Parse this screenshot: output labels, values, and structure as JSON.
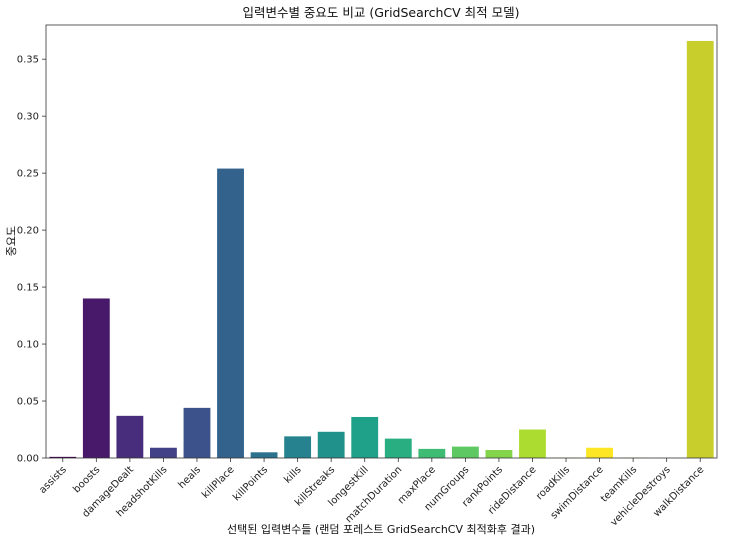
{
  "chart_data": {
    "type": "bar",
    "title": "입력변수별 중요도 비교 (GridSearchCV 최적 모델)",
    "xlabel": "선택된 입력변수들 (랜덤 포레스트 GridSearchCV 최적화후 결과)",
    "ylabel": "중요도",
    "ylim": [
      0,
      0.38
    ],
    "yticks": [
      "0.00",
      "0.05",
      "0.10",
      "0.15",
      "0.20",
      "0.25",
      "0.30",
      "0.35"
    ],
    "categories": [
      "assists",
      "boosts",
      "damageDealt",
      "headshotKills",
      "heals",
      "killPlace",
      "killPoints",
      "kills",
      "killStreaks",
      "longestKill",
      "matchDuration",
      "maxPlace",
      "numGroups",
      "rankPoints",
      "rideDistance",
      "roadKills",
      "swimDistance",
      "teamKills",
      "vehicleDestroys",
      "walkDistance"
    ],
    "values": [
      0.001,
      0.14,
      0.037,
      0.009,
      0.044,
      0.254,
      0.005,
      0.019,
      0.023,
      0.036,
      0.017,
      0.008,
      0.01,
      0.007,
      0.025,
      0.0003,
      0.009,
      0.0002,
      0.0001,
      0.366
    ],
    "colors": [
      "#440154",
      "#48186a",
      "#472d7b",
      "#424086",
      "#3b528b",
      "#33638d",
      "#2c728e",
      "#26828e",
      "#21918c",
      "#1fa088",
      "#28ae80",
      "#3fbc73",
      "#5ec962",
      "#84d44b",
      "#addc30",
      "#d8e219",
      "#fde725",
      "#c4ba2e",
      "#b5c92d",
      "#c8cf2d"
    ],
    "grid": false,
    "legend": "none"
  }
}
